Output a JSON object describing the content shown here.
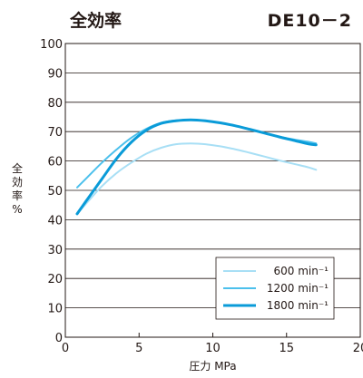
{
  "chart_data": {
    "type": "line",
    "title_left": "全効率",
    "title_right": "DE10－2",
    "xlabel": "圧力 MPa",
    "ylabel": "全効率 %",
    "xlim": [
      0,
      20
    ],
    "ylim": [
      0,
      100
    ],
    "xticks": [
      0,
      5,
      10,
      15,
      20
    ],
    "yticks": [
      0,
      10,
      20,
      30,
      40,
      50,
      60,
      70,
      80,
      90,
      100
    ],
    "grid": "horizontal",
    "legend_position": "bottom-right",
    "series": [
      {
        "name": "600",
        "unit": "min⁻¹",
        "color": "#a8dff5",
        "x": [
          0.8,
          1.5,
          2.5,
          3.5,
          4.5,
          5.5,
          6.5,
          7.5,
          8.5,
          9.5,
          10.5,
          11.5,
          12.5,
          13.5,
          14.5,
          15.5,
          16.5,
          17.0
        ],
        "y": [
          42,
          46,
          51.5,
          56,
          59.5,
          62.5,
          64.5,
          65.7,
          66,
          65.7,
          65,
          64,
          62.8,
          61.5,
          60.2,
          59,
          57.8,
          57
        ]
      },
      {
        "name": "1200",
        "unit": "min⁻¹",
        "color": "#4cc0ec",
        "x": [
          0.8,
          1.5,
          2.5,
          3.5,
          4.5,
          5.5,
          6.5,
          7.5,
          8.5,
          9.5,
          10.5,
          11.5,
          12.5,
          13.5,
          14.5,
          15.5,
          16.5,
          17.0
        ],
        "y": [
          51,
          54.5,
          59.5,
          64,
          68,
          71,
          73,
          73.8,
          74,
          73.7,
          73,
          72,
          70.8,
          69.5,
          68.3,
          67.3,
          66.5,
          66
        ]
      },
      {
        "name": "1800",
        "unit": "min⁻¹",
        "color": "#0a9bd8",
        "x": [
          0.8,
          1.5,
          2.5,
          3.5,
          4.5,
          5.5,
          6.5,
          7.5,
          8.5,
          9.5,
          10.5,
          11.5,
          12.5,
          13.5,
          14.5,
          15.5,
          16.5,
          17.0
        ],
        "y": [
          42,
          47,
          54,
          61,
          66.5,
          70.5,
          72.8,
          73.7,
          74,
          73.7,
          73,
          72,
          70.8,
          69.5,
          68.2,
          67,
          65.8,
          65.5
        ]
      }
    ]
  }
}
